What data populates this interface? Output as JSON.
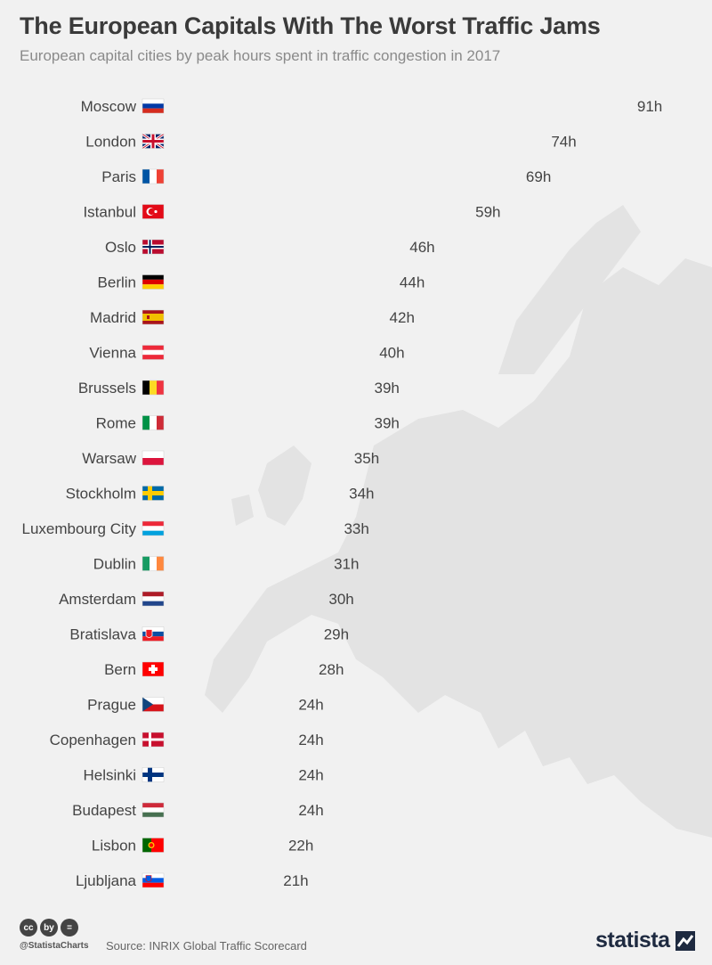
{
  "header": {
    "title": "The European Capitals With The Worst Traffic Jams",
    "subtitle": "European capital cities by peak hours spent in traffic congestion in 2017"
  },
  "footer": {
    "handle": "@StatistaCharts",
    "source": "Source: INRIX Global Traffic Scorecard",
    "brand": "statista",
    "license_icons": [
      "cc",
      "by",
      "="
    ]
  },
  "colors": {
    "car": "#b5121b",
    "background": "#f1f1f1",
    "map": "#e3e3e3",
    "text": "#444444"
  },
  "chart_data": {
    "type": "bar",
    "unit": "h",
    "categories": [
      "Moscow",
      "London",
      "Paris",
      "Istanbul",
      "Oslo",
      "Berlin",
      "Madrid",
      "Vienna",
      "Brussels",
      "Rome",
      "Warsaw",
      "Stockholm",
      "Luxembourg City",
      "Dublin",
      "Amsterdam",
      "Bratislava",
      "Bern",
      "Prague",
      "Copenhagen",
      "Helsinki",
      "Budapest",
      "Lisbon",
      "Ljubljana"
    ],
    "values": [
      91,
      74,
      69,
      59,
      46,
      44,
      42,
      40,
      39,
      39,
      35,
      34,
      33,
      31,
      30,
      29,
      28,
      24,
      24,
      24,
      24,
      22,
      21
    ],
    "value_labels": [
      "91h",
      "74h",
      "69h",
      "59h",
      "46h",
      "44h",
      "42h",
      "40h",
      "39h",
      "39h",
      "35h",
      "34h",
      "33h",
      "31h",
      "30h",
      "29h",
      "28h",
      "24h",
      "24h",
      "24h",
      "24h",
      "22h",
      "21h"
    ],
    "flags": [
      "ru",
      "gb",
      "fr",
      "tr",
      "no",
      "de",
      "es",
      "at",
      "be",
      "it",
      "pl",
      "se",
      "lu",
      "ie",
      "nl",
      "sk",
      "ch",
      "cz",
      "dk",
      "fi",
      "hu",
      "pt",
      "si"
    ]
  }
}
